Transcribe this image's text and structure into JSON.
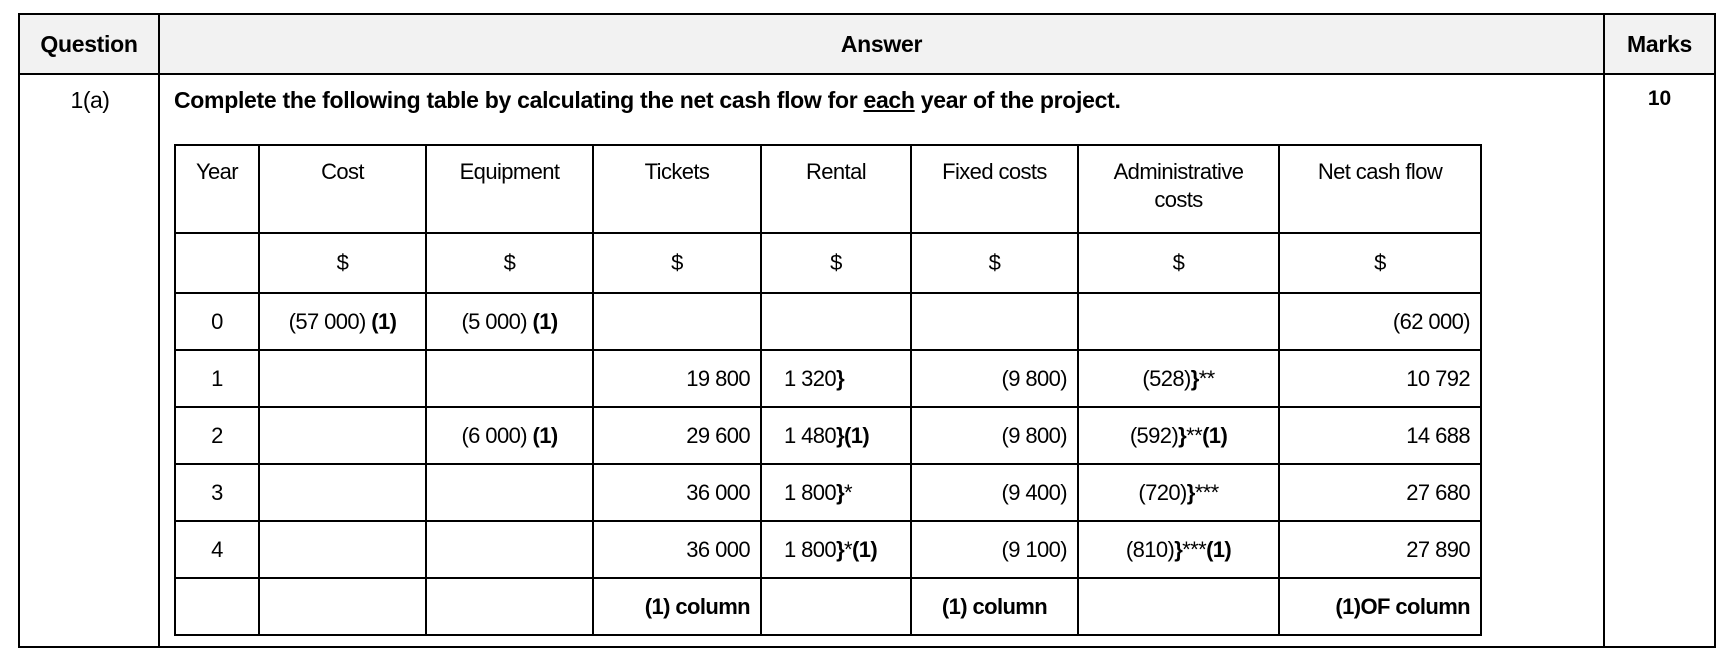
{
  "header": {
    "question": "Question",
    "answer": "Answer",
    "marks": "Marks"
  },
  "question_number": "1(a)",
  "marks_value": "10",
  "prompt": {
    "before": "Complete the following table by calculating the net cash flow for ",
    "emphasis": "each",
    "after": " year of the project."
  },
  "table": {
    "columns": [
      "Year",
      "Cost",
      "Equipment",
      "Tickets",
      "Rental",
      "Fixed costs",
      "Administrative costs",
      "Net cash flow"
    ],
    "currency_row": [
      "",
      "$",
      "$",
      "$",
      "$",
      "$",
      "$",
      "$"
    ],
    "rows": [
      [
        [
          {
            "t": "0"
          }
        ],
        [
          {
            "t": "(57 000) "
          },
          {
            "t": "(1)",
            "b": true
          }
        ],
        [
          {
            "t": "(5 000) "
          },
          {
            "t": "(1)",
            "b": true
          }
        ],
        [],
        [],
        [],
        [],
        [
          {
            "t": "(62 000)"
          }
        ]
      ],
      [
        [
          {
            "t": "1"
          }
        ],
        [],
        [],
        [
          {
            "t": "19 800"
          }
        ],
        [
          {
            "t": "1 320"
          },
          {
            "t": "}",
            "b": true
          }
        ],
        [
          {
            "t": "(9 800)"
          }
        ],
        [
          {
            "t": "(528)"
          },
          {
            "t": "}",
            "b": true
          },
          {
            "t": "**"
          }
        ],
        [
          {
            "t": "10 792"
          }
        ]
      ],
      [
        [
          {
            "t": "2"
          }
        ],
        [],
        [
          {
            "t": "(6 000) "
          },
          {
            "t": "(1)",
            "b": true
          }
        ],
        [
          {
            "t": "29 600"
          }
        ],
        [
          {
            "t": "1 480"
          },
          {
            "t": "}(1)",
            "b": true
          }
        ],
        [
          {
            "t": "(9 800)"
          }
        ],
        [
          {
            "t": "(592)"
          },
          {
            "t": "}",
            "b": true
          },
          {
            "t": "**"
          },
          {
            "t": "(1)",
            "b": true
          }
        ],
        [
          {
            "t": "14 688"
          }
        ]
      ],
      [
        [
          {
            "t": "3"
          }
        ],
        [],
        [],
        [
          {
            "t": "36 000"
          }
        ],
        [
          {
            "t": "1 800"
          },
          {
            "t": "}",
            "b": true
          },
          {
            "t": "*"
          }
        ],
        [
          {
            "t": "(9 400)"
          }
        ],
        [
          {
            "t": "(720)"
          },
          {
            "t": "}",
            "b": true
          },
          {
            "t": "***"
          }
        ],
        [
          {
            "t": "27 680"
          }
        ]
      ],
      [
        [
          {
            "t": "4"
          }
        ],
        [],
        [],
        [
          {
            "t": "36 000"
          }
        ],
        [
          {
            "t": "1 800"
          },
          {
            "t": "}",
            "b": true
          },
          {
            "t": "*"
          },
          {
            "t": "(1)",
            "b": true
          }
        ],
        [
          {
            "t": "(9 100)"
          }
        ],
        [
          {
            "t": "(810)"
          },
          {
            "t": "}",
            "b": true
          },
          {
            "t": "***"
          },
          {
            "t": "(1)",
            "b": true
          }
        ],
        [
          {
            "t": "27 890"
          }
        ]
      ],
      [
        [],
        [],
        [],
        [
          {
            "t": "(1) column",
            "b": true
          }
        ],
        [],
        [
          {
            "t": "(1) column",
            "b": true
          }
        ],
        [],
        [
          {
            "t": "(1)OF column",
            "b": true
          }
        ]
      ]
    ]
  }
}
